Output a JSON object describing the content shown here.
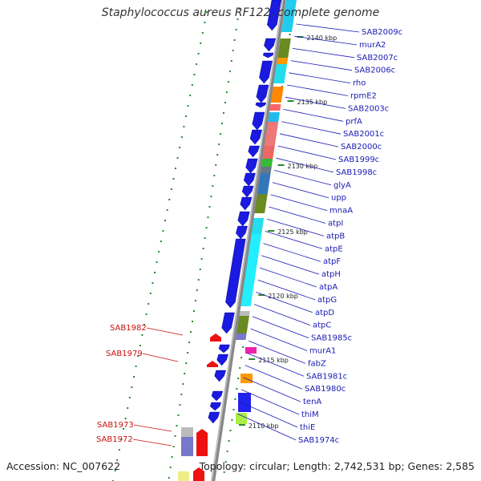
{
  "title": "Staphylococcus aureus RF122, complete genome",
  "accession_text": "Accession: NC_007622",
  "summary_text": "Topology: circular; Length: 2,742,531 bp; Genes: 2,585",
  "colors": {
    "forward_label": "#1a1ab4",
    "reverse_label": "#cc1111",
    "backbone": "#888888",
    "tick_mark": "#2a8a2a"
  },
  "kbp_ticks": [
    "2140 kbp",
    "2135 kbp",
    "2130 kbp",
    "2125 kbp",
    "2120 kbp",
    "2115 kbp",
    "2110 kbp"
  ],
  "forward_genes": [
    "SAB2009c",
    "murA2",
    "SAB2007c",
    "SAB2006c",
    "rho",
    "rpmE2",
    "SAB2003c",
    "prfA",
    "SAB2001c",
    "SAB2000c",
    "SAB1999c",
    "SAB1998c",
    "glyA",
    "upp",
    "mnaA",
    "atpI",
    "atpB",
    "atpE",
    "atpF",
    "atpH",
    "atpA",
    "atpG",
    "atpD",
    "atpC",
    "SAB1985c",
    "murA1",
    "fabZ",
    "SAB1981c",
    "SAB1980c",
    "tenA",
    "thiM",
    "thiE",
    "SAB1974c"
  ],
  "reverse_genes": [
    "SAB1982",
    "SAB1979",
    "SAB1973",
    "SAB1972"
  ]
}
